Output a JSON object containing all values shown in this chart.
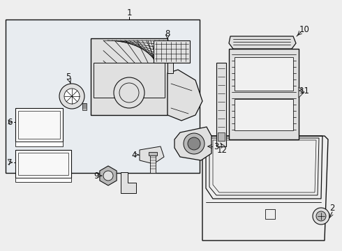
{
  "bg_color": "#eeeeee",
  "box_bg": "#e8ecf0",
  "white": "#ffffff",
  "black": "#111111",
  "gray_light": "#e0e0e0",
  "gray_mid": "#b8b8b8",
  "gray_dark": "#888888"
}
